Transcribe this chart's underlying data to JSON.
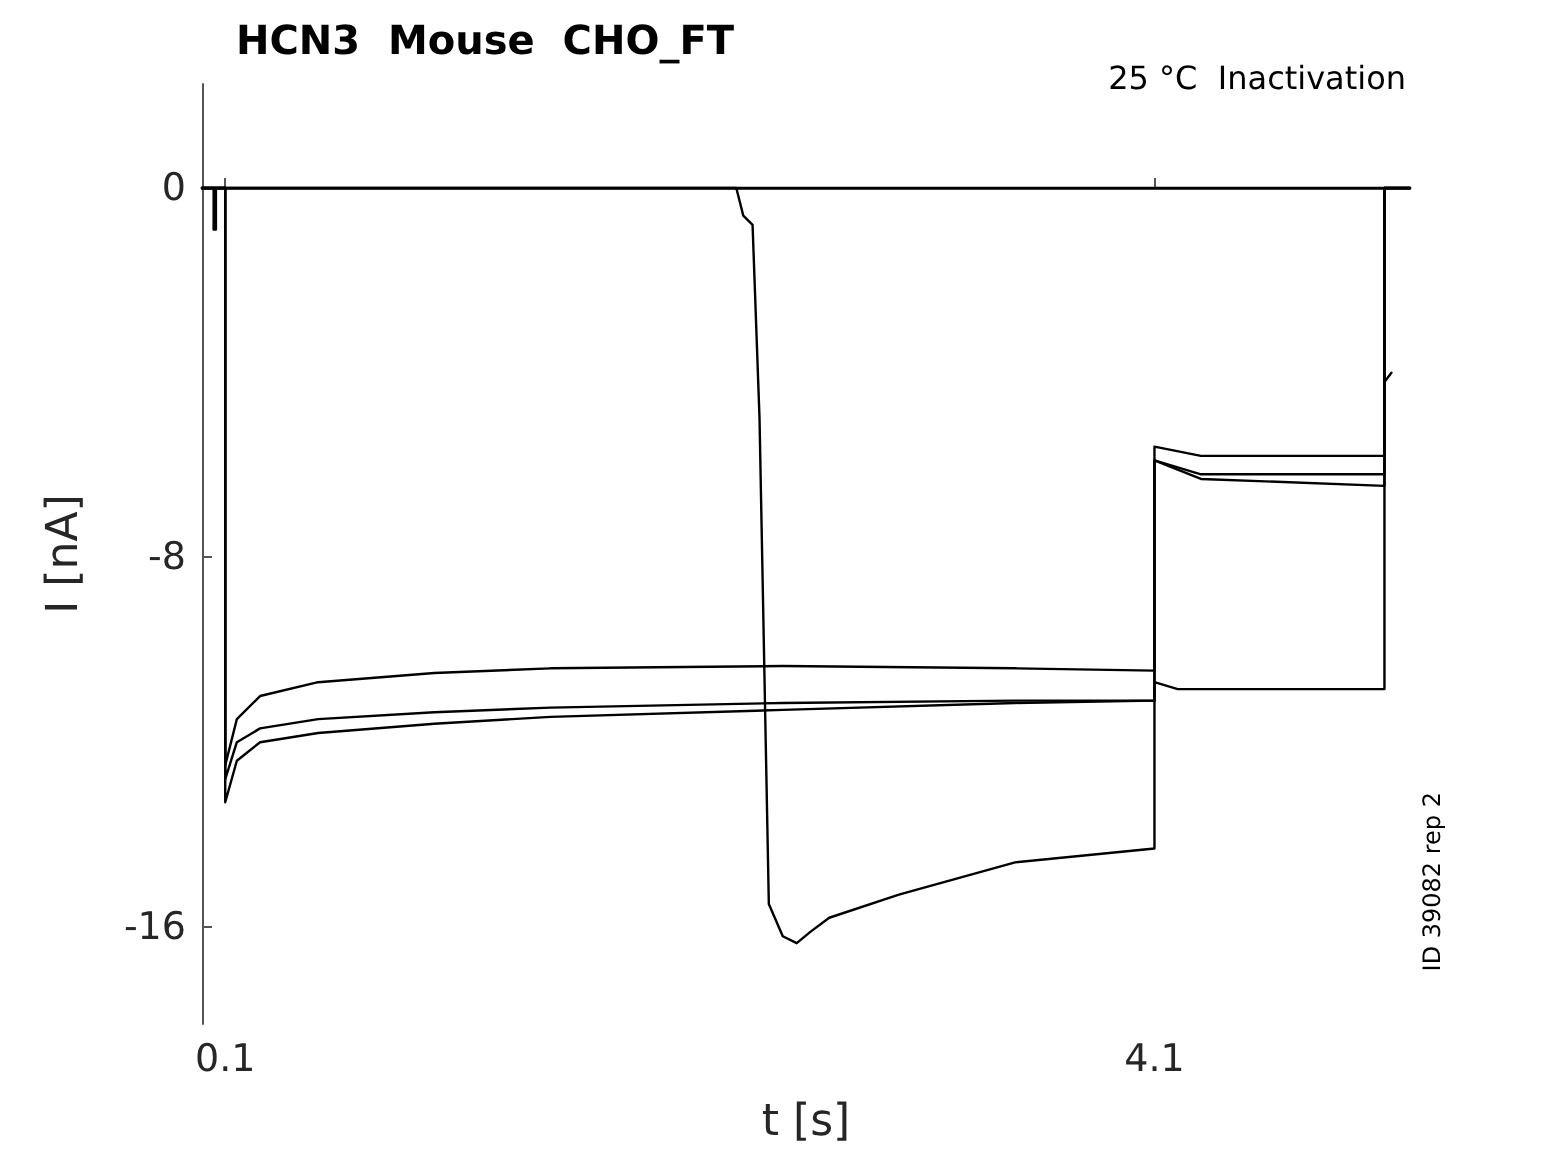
{
  "chart_data": {
    "type": "line",
    "title": "HCN3  Mouse  CHO_FT",
    "subtitle": "25 °C  Inactivation",
    "xlabel": "t [s]",
    "ylabel": "I [nA]",
    "annotations": [
      "ID 39082 rep 2"
    ],
    "xlim": [
      0,
      5.2
    ],
    "xticks": [
      0.1,
      4.1
    ],
    "ylim": [
      -18.1,
      2.25
    ],
    "yticks": [
      -16,
      -8,
      0
    ],
    "marker": "none",
    "line_style": "solid",
    "series": [
      {
        "color": "#000000",
        "x": [
          0,
          0.1,
          0.1,
          0.15,
          0.25,
          0.5,
          1.0,
          1.5,
          2.5,
          3.5,
          4.1,
          4.1,
          4.3,
          5.09,
          5.09,
          5.2
        ],
        "values": [
          0,
          0,
          -12.5,
          -11.5,
          -11.0,
          -10.7,
          -10.5,
          -10.4,
          -10.35,
          -10.4,
          -10.45,
          -5.6,
          -5.8,
          -5.8,
          0,
          0
        ]
      },
      {
        "color": "#000000",
        "x": [
          0,
          0.1,
          0.1,
          0.15,
          0.25,
          0.5,
          1.0,
          1.5,
          2.5,
          3.5,
          4.1,
          4.1,
          4.3,
          5.09,
          5.09,
          5.2
        ],
        "values": [
          0,
          0,
          -12.8,
          -12.0,
          -11.7,
          -11.5,
          -11.35,
          -11.25,
          -11.15,
          -11.1,
          -11.1,
          -5.9,
          -6.2,
          -6.2,
          0,
          0
        ]
      },
      {
        "color": "#000000",
        "x": [
          0,
          0.1,
          0.1,
          0.15,
          0.25,
          0.5,
          1.0,
          1.5,
          2.5,
          3.5,
          4.1,
          4.1,
          4.3,
          5.09,
          5.09,
          5.2
        ],
        "values": [
          0,
          0,
          -13.3,
          -12.4,
          -12.0,
          -11.8,
          -11.6,
          -11.45,
          -11.3,
          -11.15,
          -11.1,
          -5.9,
          -6.3,
          -6.45,
          0,
          0
        ]
      },
      {
        "color": "#000000",
        "x": [
          0,
          2.3,
          2.33,
          2.37,
          2.4,
          2.44,
          2.5,
          2.56,
          2.62,
          2.7,
          3.0,
          3.5,
          4.1,
          4.1,
          4.2,
          5.09,
          5.09,
          5.2
        ],
        "values": [
          0,
          0,
          -0.6,
          -0.8,
          -5,
          -15.5,
          -16.2,
          -16.35,
          -16.1,
          -15.8,
          -15.3,
          -14.6,
          -14.3,
          -10.7,
          -10.85,
          -10.85,
          0,
          0
        ]
      },
      {
        "color": "#000000",
        "x": [
          0,
          0.05,
          0.05,
          0.06,
          0.06,
          4.1,
          5.09,
          5.09,
          5.12
        ],
        "values": [
          0,
          0,
          -0.9,
          -0.9,
          0,
          0,
          0,
          -4.2,
          -4.0
        ]
      }
    ]
  }
}
